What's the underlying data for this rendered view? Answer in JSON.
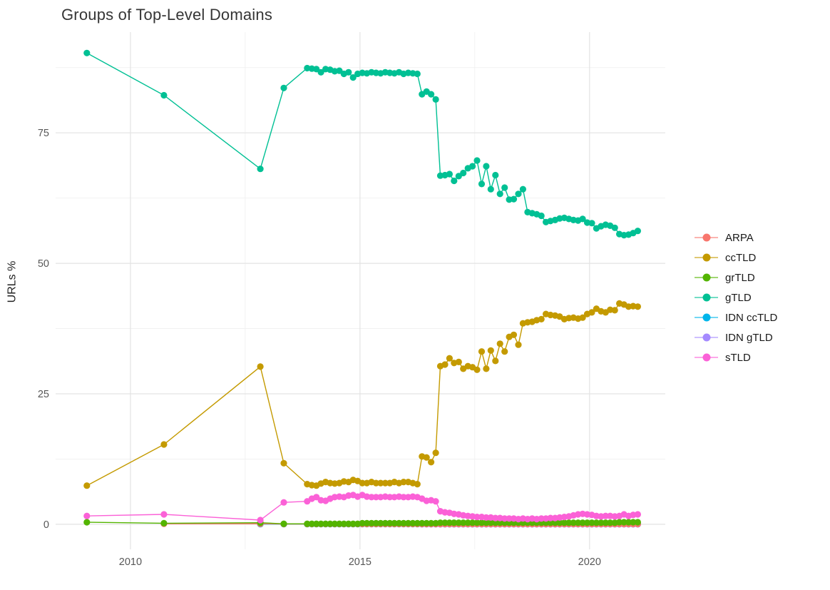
{
  "chart_data": {
    "type": "line",
    "title": "Groups of Top-Level Domains",
    "xlabel": "",
    "ylabel": "URLs %",
    "grid": true,
    "legend_position": "right",
    "xlim": [
      2008.37,
      2021.65
    ],
    "ylim": [
      -4.8,
      94.3
    ],
    "x_ticks": [
      {
        "value": 2010,
        "label": "2010"
      },
      {
        "value": 2015,
        "label": "2015"
      },
      {
        "value": 2020,
        "label": "2020"
      }
    ],
    "y_ticks": [
      {
        "value": 0,
        "label": "0"
      },
      {
        "value": 25,
        "label": "25"
      },
      {
        "value": 50,
        "label": "50"
      },
      {
        "value": 75,
        "label": "75"
      }
    ],
    "x_minor": [
      2012.5,
      2017.5
    ],
    "y_minor": [
      12.5,
      37.5,
      62.5,
      87.5
    ],
    "x": [
      2009.05,
      2010.73,
      2012.83,
      2013.34,
      2013.85,
      2013.95,
      2014.05,
      2014.15,
      2014.25,
      2014.35,
      2014.45,
      2014.55,
      2014.65,
      2014.75,
      2014.85,
      2014.95,
      2015.05,
      2015.15,
      2015.25,
      2015.35,
      2015.45,
      2015.55,
      2015.65,
      2015.75,
      2015.85,
      2015.95,
      2016.05,
      2016.15,
      2016.25,
      2016.35,
      2016.45,
      2016.55,
      2016.65,
      2016.75,
      2016.85,
      2016.95,
      2017.05,
      2017.15,
      2017.25,
      2017.35,
      2017.45,
      2017.55,
      2017.65,
      2017.75,
      2017.85,
      2017.95,
      2018.05,
      2018.15,
      2018.25,
      2018.35,
      2018.45,
      2018.55,
      2018.65,
      2018.75,
      2018.85,
      2018.95,
      2019.05,
      2019.15,
      2019.25,
      2019.35,
      2019.45,
      2019.55,
      2019.65,
      2019.75,
      2019.85,
      2019.95,
      2020.05,
      2020.15,
      2020.25,
      2020.35,
      2020.45,
      2020.55,
      2020.65,
      2020.75,
      2020.85,
      2020.95,
      2021.05
    ],
    "series": [
      {
        "name": "ARPA",
        "color": "#F8766D",
        "values": [
          null,
          0.1,
          0.1,
          0.05,
          0.05,
          0.05,
          0.05,
          0.05,
          0.05,
          0.05,
          0.05,
          0.05,
          0.05,
          0.05,
          0.05,
          0.05,
          0.05,
          0.05,
          0.05,
          0.05,
          0.05,
          0.05,
          0.05,
          0.05,
          0.05,
          0.05,
          0.05,
          0.05,
          0.05,
          0.05,
          0.05,
          0.05,
          0.05,
          0.05,
          0.05,
          0.05,
          0.05,
          0.05,
          0.05,
          0.05,
          0.05,
          0.05,
          0.05,
          0.05,
          0.05,
          0.05,
          0.05,
          0.05,
          0.05,
          0.05,
          0.05,
          0.05,
          0.05,
          0.05,
          0.05,
          0.05,
          0.05,
          0.05,
          0.05,
          0.05,
          0.05,
          0.05,
          0.05,
          0.05,
          0.05,
          0.05,
          0.05,
          0.05,
          0.05,
          0.05,
          0.05,
          0.05,
          0.05,
          0.05,
          0.05,
          0.05,
          0.05
        ]
      },
      {
        "name": "ccTLD",
        "color": "#C49A00",
        "values": [
          7.4,
          15.3,
          30.2,
          11.7,
          7.7,
          7.5,
          7.4,
          7.8,
          8.1,
          7.9,
          7.8,
          7.9,
          8.2,
          8.1,
          8.5,
          8.3,
          7.9,
          7.9,
          8.1,
          7.9,
          7.9,
          7.9,
          7.9,
          8.1,
          7.9,
          8.1,
          8.1,
          7.9,
          7.7,
          13.0,
          12.8,
          11.9,
          13.7,
          30.3,
          30.6,
          31.8,
          30.9,
          31.1,
          29.8,
          30.3,
          30.1,
          29.6,
          33.1,
          29.8,
          33.3,
          31.3,
          34.6,
          33.1,
          35.9,
          36.3,
          34.4,
          38.5,
          38.7,
          38.8,
          39.1,
          39.3,
          40.3,
          40.1,
          40.0,
          39.8,
          39.3,
          39.5,
          39.6,
          39.4,
          39.6,
          40.3,
          40.6,
          41.3,
          40.8,
          40.6,
          41.1,
          41.0,
          42.3,
          42.1,
          41.7,
          41.8,
          41.7
        ]
      },
      {
        "name": "grTLD",
        "color": "#53B400",
        "values": [
          0.4,
          0.2,
          0.3,
          0.1,
          0.1,
          0.1,
          0.1,
          0.1,
          0.1,
          0.1,
          0.1,
          0.1,
          0.1,
          0.1,
          0.1,
          0.1,
          0.2,
          0.2,
          0.2,
          0.2,
          0.2,
          0.2,
          0.2,
          0.2,
          0.2,
          0.2,
          0.2,
          0.2,
          0.2,
          0.2,
          0.2,
          0.2,
          0.2,
          0.3,
          0.3,
          0.3,
          0.3,
          0.3,
          0.3,
          0.3,
          0.3,
          0.3,
          0.3,
          0.3,
          0.3,
          0.3,
          0.3,
          0.3,
          0.3,
          0.3,
          0.3,
          0.3,
          0.3,
          0.3,
          0.3,
          0.3,
          0.3,
          0.3,
          0.3,
          0.3,
          0.3,
          0.3,
          0.3,
          0.3,
          0.3,
          0.3,
          0.3,
          0.3,
          0.3,
          0.3,
          0.3,
          0.3,
          0.4,
          0.4,
          0.4,
          0.4,
          0.4
        ]
      },
      {
        "name": "gTLD",
        "color": "#00C094",
        "values": [
          90.3,
          82.2,
          68.1,
          83.6,
          87.4,
          87.3,
          87.2,
          86.6,
          87.2,
          87.1,
          86.8,
          86.9,
          86.3,
          86.6,
          85.6,
          86.3,
          86.5,
          86.4,
          86.6,
          86.5,
          86.4,
          86.6,
          86.5,
          86.4,
          86.6,
          86.3,
          86.5,
          86.4,
          86.3,
          82.4,
          82.9,
          82.4,
          81.4,
          66.8,
          66.9,
          67.1,
          65.8,
          66.7,
          67.3,
          68.2,
          68.6,
          69.7,
          65.2,
          68.6,
          64.2,
          66.9,
          63.3,
          64.5,
          62.2,
          62.3,
          63.3,
          64.2,
          59.8,
          59.6,
          59.4,
          59.1,
          57.9,
          58.1,
          58.3,
          58.6,
          58.7,
          58.5,
          58.3,
          58.2,
          58.5,
          57.8,
          57.7,
          56.7,
          57.1,
          57.4,
          57.2,
          56.8,
          55.6,
          55.4,
          55.5,
          55.8,
          56.2
        ]
      },
      {
        "name": "IDN ccTLD",
        "color": "#00B6EB",
        "values": [
          null,
          null,
          0.02,
          0.02,
          0.02,
          0.02,
          0.02,
          0.02,
          0.02,
          0.02,
          0.02,
          0.02,
          0.02,
          0.02,
          0.02,
          0.02,
          0.02,
          0.02,
          0.02,
          0.02,
          0.02,
          0.02,
          0.02,
          0.02,
          0.02,
          0.02,
          0.02,
          0.02,
          0.02,
          0.02,
          0.02,
          0.02,
          0.02,
          0.02,
          0.02,
          0.02,
          0.02,
          0.02,
          0.02,
          0.02,
          0.02,
          0.02,
          0.02,
          0.02,
          0.02,
          0.02,
          0.02,
          0.02,
          0.02,
          0.02,
          0.02,
          0.02,
          0.02,
          0.02,
          0.02,
          0.02,
          0.02,
          0.02,
          0.02,
          0.02,
          0.02,
          0.02,
          0.02,
          0.02,
          0.02,
          0.02,
          0.02,
          0.02,
          0.02,
          0.02,
          0.02,
          0.02,
          0.02,
          0.02,
          0.02,
          0.02,
          0.02
        ]
      },
      {
        "name": "IDN gTLD",
        "color": "#A58AFF",
        "values": [
          null,
          null,
          null,
          null,
          null,
          null,
          null,
          null,
          null,
          null,
          null,
          null,
          null,
          null,
          null,
          null,
          null,
          null,
          null,
          null,
          null,
          null,
          null,
          null,
          null,
          null,
          null,
          null,
          null,
          0,
          0,
          0,
          0,
          0,
          0,
          0,
          0,
          0,
          0,
          0,
          0,
          0,
          0,
          0,
          0,
          0,
          0,
          0,
          0,
          0,
          0,
          0,
          0,
          0,
          0,
          0,
          0,
          0,
          0,
          0,
          0,
          0,
          0,
          0,
          0,
          0,
          0,
          0,
          0,
          0,
          0,
          0,
          0,
          0,
          0,
          0,
          0
        ]
      },
      {
        "name": "sTLD",
        "color": "#FB61D7",
        "values": [
          1.6,
          1.9,
          0.8,
          4.2,
          4.4,
          4.9,
          5.2,
          4.6,
          4.5,
          4.9,
          5.2,
          5.3,
          5.2,
          5.5,
          5.6,
          5.3,
          5.6,
          5.3,
          5.2,
          5.2,
          5.2,
          5.3,
          5.2,
          5.2,
          5.3,
          5.2,
          5.2,
          5.3,
          5.2,
          4.9,
          4.5,
          4.6,
          4.4,
          2.5,
          2.3,
          2.2,
          2.0,
          1.9,
          1.7,
          1.6,
          1.5,
          1.4,
          1.4,
          1.3,
          1.3,
          1.2,
          1.2,
          1.1,
          1.1,
          1.1,
          1.0,
          1.1,
          1.0,
          1.1,
          1.0,
          1.1,
          1.1,
          1.2,
          1.2,
          1.3,
          1.4,
          1.5,
          1.7,
          1.9,
          2.0,
          1.9,
          1.8,
          1.6,
          1.5,
          1.6,
          1.6,
          1.5,
          1.6,
          1.9,
          1.6,
          1.8,
          1.9
        ]
      }
    ]
  }
}
